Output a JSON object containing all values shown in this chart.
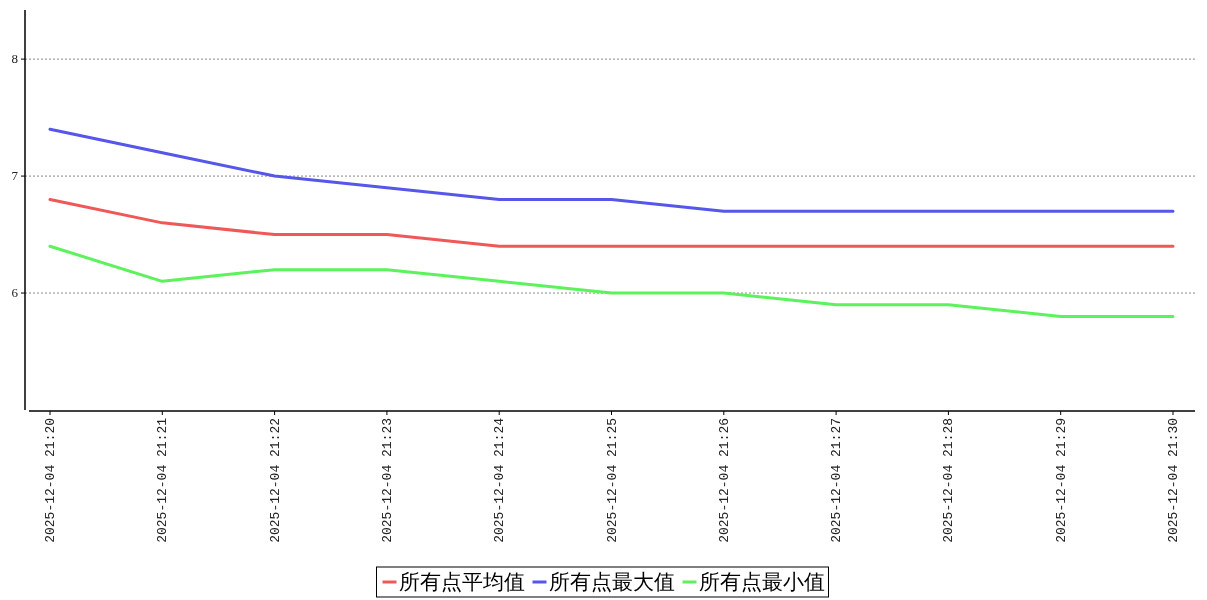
{
  "chart_data": {
    "type": "line",
    "categories": [
      "2025-12-04 21:20",
      "2025-12-04 21:21",
      "2025-12-04 21:22",
      "2025-12-04 21:23",
      "2025-12-04 21:24",
      "2025-12-04 21:25",
      "2025-12-04 21:26",
      "2025-12-04 21:27",
      "2025-12-04 21:28",
      "2025-12-04 21:29",
      "2025-12-04 21:30"
    ],
    "series": [
      {
        "name": "所有点平均值",
        "color": "#f05858",
        "values": [
          6.8,
          6.6,
          6.5,
          6.5,
          6.4,
          6.4,
          6.4,
          6.4,
          6.4,
          6.4,
          6.4
        ]
      },
      {
        "name": "所有点最大值",
        "color": "#5656ea",
        "values": [
          7.4,
          7.2,
          7.0,
          6.9,
          6.8,
          6.8,
          6.7,
          6.7,
          6.7,
          6.7,
          6.7
        ]
      },
      {
        "name": "所有点最小值",
        "color": "#5cf25c",
        "values": [
          6.4,
          6.1,
          6.2,
          6.2,
          6.1,
          6.0,
          6.0,
          5.9,
          5.9,
          5.8,
          5.8
        ]
      }
    ],
    "ylim": [
      5,
      8.42
    ],
    "yticks": [
      6,
      7,
      8
    ],
    "grid": "y",
    "legend": "bottom"
  }
}
